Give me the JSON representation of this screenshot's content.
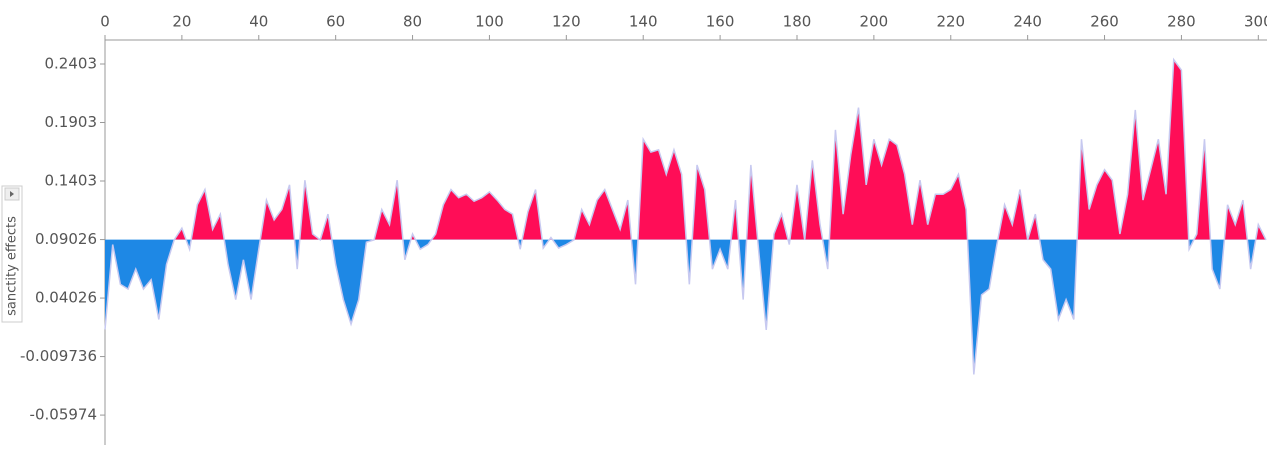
{
  "chart_data": {
    "type": "area",
    "y_label": "sanctity effects",
    "base_value": 0.09026,
    "color_above": "#ff0d57",
    "color_below": "#1e88e5",
    "line_color": "#c7c9f0",
    "xlim": [
      0,
      302
    ],
    "xticks": [
      0,
      20,
      40,
      60,
      80,
      100,
      120,
      140,
      160,
      180,
      200,
      220,
      240,
      260,
      280,
      300
    ],
    "ylim": [
      -0.0853,
      0.2608
    ],
    "yticks": [
      0.2403,
      0.1903,
      0.1403,
      0.09026,
      0.04026,
      -0.009736,
      -0.05974
    ],
    "x": [
      0,
      2,
      4,
      6,
      8,
      10,
      12,
      14,
      16,
      18,
      20,
      22,
      24,
      26,
      28,
      30,
      32,
      34,
      36,
      38,
      40,
      42,
      44,
      46,
      48,
      50,
      52,
      54,
      56,
      58,
      60,
      62,
      64,
      66,
      68,
      70,
      72,
      74,
      76,
      78,
      80,
      82,
      84,
      86,
      88,
      90,
      92,
      94,
      96,
      98,
      100,
      102,
      104,
      106,
      108,
      110,
      112,
      114,
      116,
      118,
      120,
      122,
      124,
      126,
      128,
      130,
      132,
      134,
      136,
      138,
      140,
      142,
      144,
      146,
      148,
      150,
      152,
      154,
      156,
      158,
      160,
      162,
      164,
      166,
      168,
      170,
      172,
      174,
      176,
      178,
      180,
      182,
      184,
      186,
      188,
      190,
      192,
      194,
      196,
      198,
      200,
      202,
      204,
      206,
      208,
      210,
      212,
      214,
      216,
      218,
      220,
      222,
      224,
      226,
      228,
      230,
      232,
      234,
      236,
      238,
      240,
      242,
      244,
      246,
      248,
      250,
      252,
      254,
      256,
      258,
      260,
      262,
      264,
      266,
      268,
      270,
      272,
      274,
      276,
      278,
      280,
      282,
      284,
      286,
      288,
      290,
      292,
      294,
      296,
      298,
      300,
      302
    ],
    "values": [
      0.0135,
      0.086,
      0.052,
      0.048,
      0.065,
      0.048,
      0.056,
      0.022,
      0.069,
      0.09,
      0.1,
      0.082,
      0.12,
      0.133,
      0.099,
      0.112,
      0.069,
      0.039,
      0.073,
      0.039,
      0.082,
      0.124,
      0.107,
      0.116,
      0.137,
      0.065,
      0.141,
      0.095,
      0.09,
      0.112,
      0.069,
      0.039,
      0.018,
      0.039,
      0.088,
      0.09,
      0.116,
      0.103,
      0.141,
      0.073,
      0.095,
      0.082,
      0.086,
      0.095,
      0.12,
      0.133,
      0.126,
      0.129,
      0.123,
      0.126,
      0.131,
      0.124,
      0.116,
      0.112,
      0.082,
      0.114,
      0.133,
      0.083,
      0.092,
      0.083,
      0.086,
      0.09,
      0.116,
      0.103,
      0.124,
      0.133,
      0.116,
      0.099,
      0.124,
      0.052,
      0.176,
      0.165,
      0.167,
      0.146,
      0.167,
      0.146,
      0.052,
      0.154,
      0.133,
      0.065,
      0.082,
      0.065,
      0.124,
      0.039,
      0.154,
      0.082,
      0.013,
      0.095,
      0.112,
      0.086,
      0.137,
      0.09,
      0.158,
      0.103,
      0.065,
      0.184,
      0.112,
      0.163,
      0.203,
      0.137,
      0.176,
      0.154,
      0.176,
      0.171,
      0.146,
      0.103,
      0.141,
      0.103,
      0.129,
      0.129,
      0.133,
      0.146,
      0.116,
      -0.025,
      0.043,
      0.048,
      0.086,
      0.12,
      0.103,
      0.133,
      0.09,
      0.112,
      0.073,
      0.065,
      0.022,
      0.039,
      0.022,
      0.176,
      0.116,
      0.137,
      0.15,
      0.141,
      0.095,
      0.129,
      0.201,
      0.124,
      0.15,
      0.176,
      0.129,
      0.244,
      0.235,
      0.082,
      0.095,
      0.176,
      0.065,
      0.048,
      0.12,
      0.103,
      0.124,
      0.065,
      0.103,
      0.09
    ]
  }
}
